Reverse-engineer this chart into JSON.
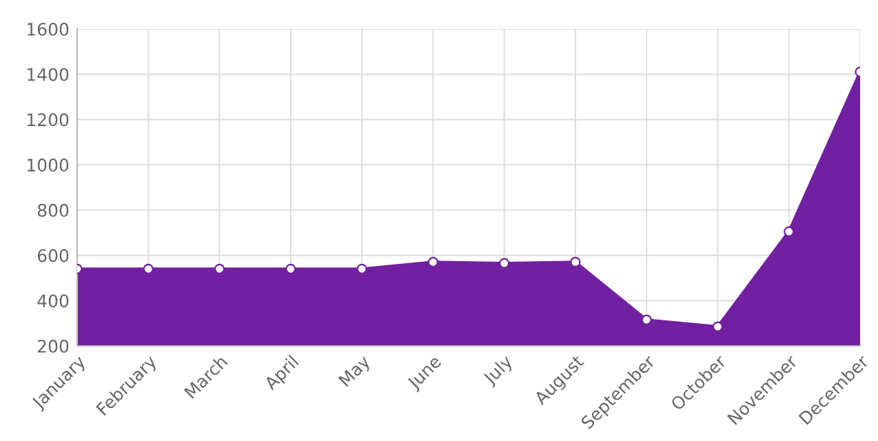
{
  "chart_data": {
    "type": "area",
    "categories": [
      "January",
      "February",
      "March",
      "April",
      "May",
      "June",
      "July",
      "August",
      "September",
      "October",
      "November",
      "December"
    ],
    "series": [
      {
        "color": "#7020a0",
        "values": [
          540,
          540,
          540,
          540,
          540,
          570,
          565,
          570,
          315,
          285,
          705,
          1410
        ]
      }
    ],
    "ylim": [
      200,
      1600
    ],
    "yticks": [
      200,
      400,
      600,
      800,
      1000,
      1200,
      1400,
      1600
    ],
    "grid": true,
    "legend": false,
    "marker": "circle",
    "line_style": "solid"
  }
}
